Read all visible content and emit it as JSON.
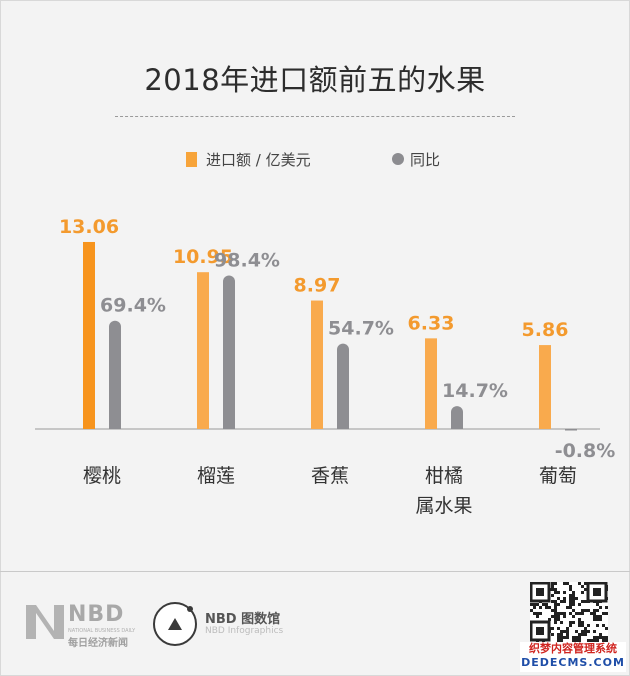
{
  "chart_data": {
    "type": "bar",
    "title": "2018年进口额前五的水果",
    "categories": [
      "樱桃",
      "榴莲",
      "香蕉",
      "柑橘\n属水果",
      "葡萄"
    ],
    "series": [
      {
        "name": "进口额 / 亿美元",
        "values": [
          13.06,
          10.95,
          8.97,
          6.33,
          5.86
        ],
        "labels": [
          "13.06",
          "10.95",
          "8.97",
          "6.33",
          "5.86"
        ]
      },
      {
        "name": "同比",
        "values": [
          69.4,
          98.4,
          54.7,
          14.7,
          -0.8
        ],
        "labels": [
          "69.4%",
          "98.4%",
          "54.7%",
          "14.7%",
          "-0.8%"
        ]
      }
    ],
    "legend": "top-center",
    "grid": false
  },
  "colors": {
    "import_bar_first": "#f7941d",
    "import_bar": "#f9aa4d",
    "yoy_bar": "#8e8e92",
    "import_label": "#f39a2e",
    "yoy_label": "#8e8e92"
  },
  "footer": {
    "brand": "NBD",
    "brand_en": "NATIONAL BUSINESS DAILY",
    "brand_cn": "每日经济新闻",
    "infographics": "NBD 图数馆",
    "infographics_en": "NBD Infographics",
    "watermark_1": "织梦内容管理系统",
    "watermark_2": "DEDECMS.COM"
  }
}
